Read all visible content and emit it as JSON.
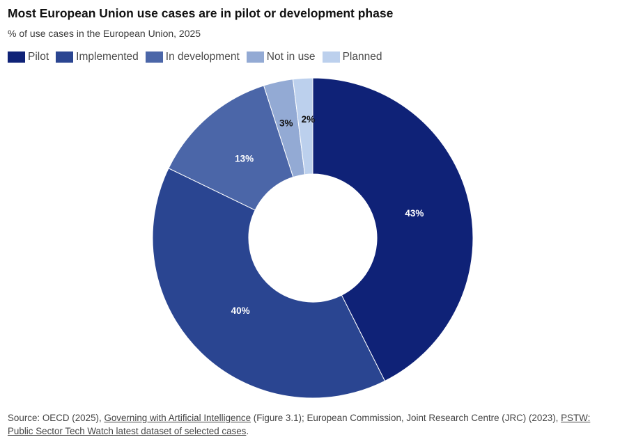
{
  "header": {
    "title": "Most European Union use cases are in pilot or development phase",
    "subtitle": "% of use cases in the European Union, 2025"
  },
  "chart_data": {
    "type": "pie",
    "donut": true,
    "categories": [
      "Pilot",
      "Implemented",
      "In development",
      "Not in use",
      "Planned"
    ],
    "values": [
      43,
      40,
      13,
      3,
      2
    ],
    "data_labels": [
      "43%",
      "40%",
      "13%",
      "3%",
      "2%"
    ],
    "colors": [
      "#0f2277",
      "#2a4591",
      "#4b66a8",
      "#93aad4",
      "#bcd0ed"
    ],
    "label_colors": [
      "#ffffff",
      "#ffffff",
      "#ffffff",
      "#111111",
      "#111111"
    ],
    "legend_position": "top-left"
  },
  "footer": {
    "source_prefix": "Source: OECD (2025), ",
    "link1": "Governing with Artificial Intelligence",
    "mid_text": " (Figure 3.1); European Commission, Joint Research Centre (JRC) (2023), ",
    "link2": "PSTW: Public Sector Tech Watch latest dataset of selected cases",
    "end_text": "."
  }
}
